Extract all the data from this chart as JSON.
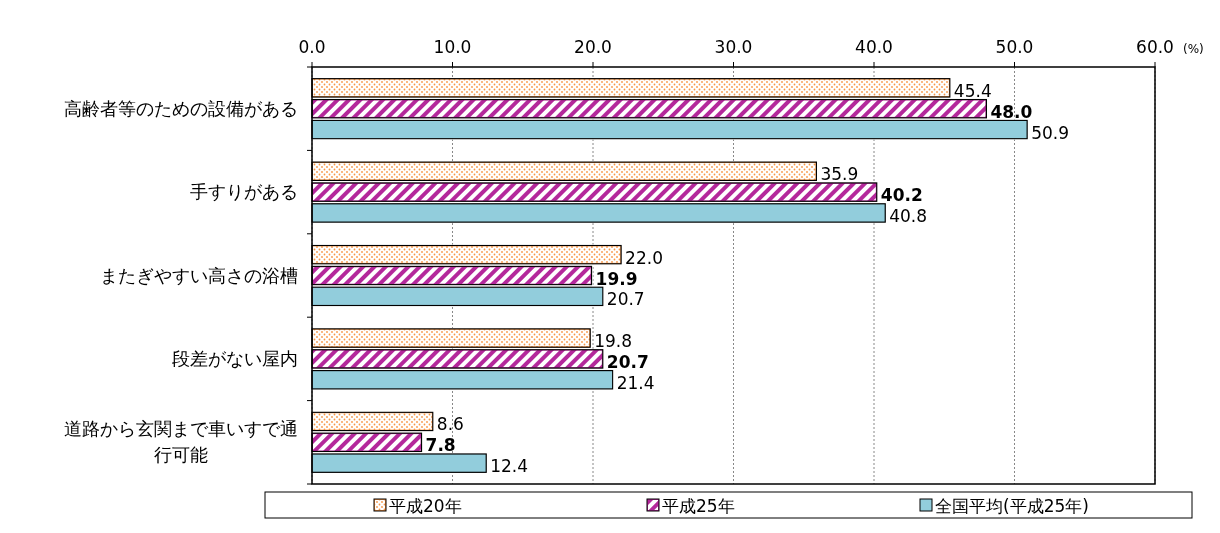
{
  "chart_data": {
    "type": "bar",
    "orientation": "horizontal",
    "xlabel": "(%)",
    "categories": [
      "高齢者等のための設備がある",
      "手すりがある",
      "またぎやすい高さの浴槽",
      "段差がない屋内",
      "道路から玄関まで車いすで通行可能"
    ],
    "series": [
      {
        "name": "平成20年",
        "color": "#f79646",
        "values": [
          45.4,
          35.9,
          22.0,
          19.8,
          8.6
        ],
        "value_labels": [
          "45.4",
          "35.9",
          "22.0",
          "19.8",
          "8.6"
        ]
      },
      {
        "name": "平成25年",
        "color": "#b4289b",
        "values": [
          48.0,
          40.2,
          19.9,
          20.7,
          7.8
        ],
        "value_labels": [
          "48.0",
          "40.2",
          "19.9",
          "20.7",
          "7.8"
        ]
      },
      {
        "name": "全国平均(平成25年)",
        "color": "#92cddc",
        "values": [
          50.9,
          40.8,
          20.7,
          21.4,
          12.4
        ],
        "value_labels": [
          "50.9",
          "40.8",
          "20.7",
          "21.4",
          "12.4"
        ]
      }
    ],
    "xlim": [
      0,
      60
    ],
    "xticks": [
      {
        "value": 0,
        "label": "0.0"
      },
      {
        "value": 10,
        "label": "10.0"
      },
      {
        "value": 20,
        "label": "20.0"
      },
      {
        "value": 30,
        "label": "30.0"
      },
      {
        "value": 40,
        "label": "40.0"
      },
      {
        "value": 50,
        "label": "50.0"
      },
      {
        "value": 60,
        "label": "60.0"
      }
    ],
    "grid": "x",
    "legend": "bottom"
  }
}
